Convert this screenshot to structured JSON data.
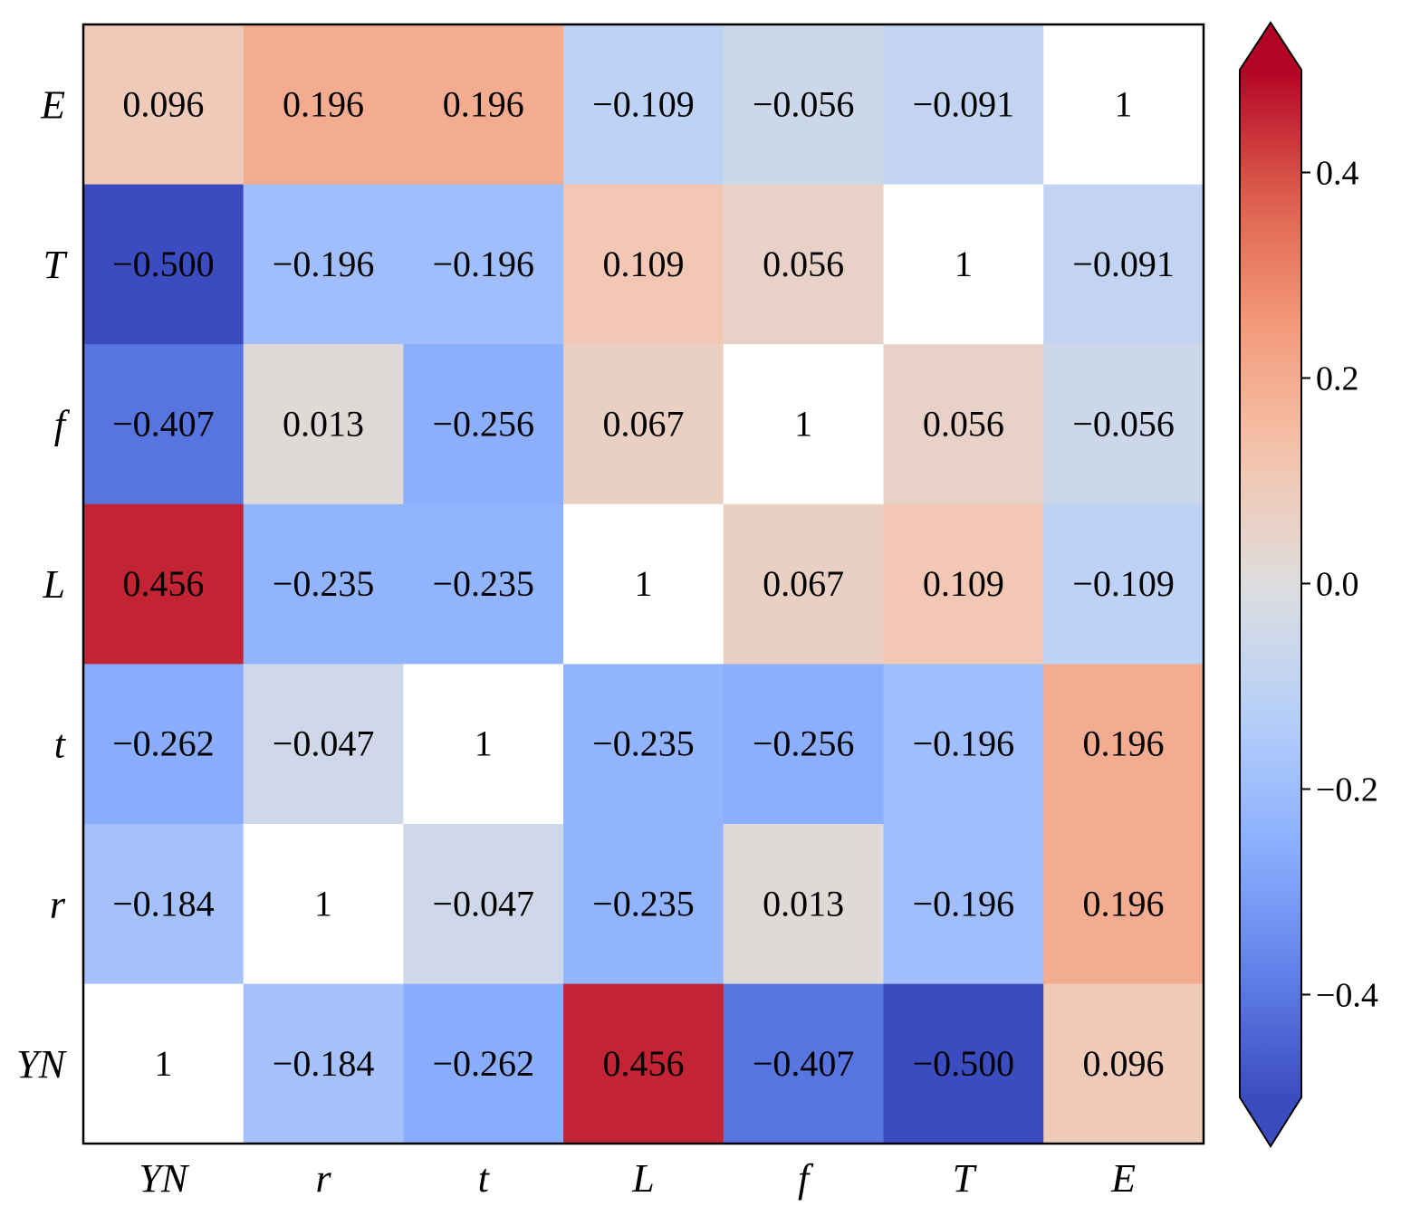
{
  "chart_data": {
    "type": "heatmap",
    "title": "",
    "xlabel": "",
    "ylabel": "",
    "x_labels": [
      "YN",
      "r",
      "t",
      "L",
      "f",
      "T",
      "E"
    ],
    "y_labels_top_to_bottom": [
      "E",
      "T",
      "f",
      "L",
      "t",
      "r",
      "YN"
    ],
    "values_top_to_bottom": [
      [
        0.096,
        0.196,
        0.196,
        -0.109,
        -0.056,
        -0.091,
        1
      ],
      [
        -0.5,
        -0.196,
        -0.196,
        0.109,
        0.056,
        1,
        -0.091
      ],
      [
        -0.407,
        0.013,
        -0.256,
        0.067,
        1,
        0.056,
        -0.056
      ],
      [
        0.456,
        -0.235,
        -0.235,
        1,
        0.067,
        0.109,
        -0.109
      ],
      [
        -0.262,
        -0.047,
        1,
        -0.235,
        -0.256,
        -0.196,
        0.196
      ],
      [
        -0.184,
        1,
        -0.047,
        -0.235,
        0.013,
        -0.196,
        0.196
      ],
      [
        1,
        -0.184,
        -0.262,
        0.456,
        -0.407,
        -0.5,
        0.096
      ]
    ],
    "display_labels_top_to_bottom": [
      [
        "0.096",
        "0.196",
        "0.196",
        "−0.109",
        "−0.056",
        "−0.091",
        "1"
      ],
      [
        "−0.500",
        "−0.196",
        "−0.196",
        "0.109",
        "0.056",
        "1",
        "−0.091"
      ],
      [
        "−0.407",
        "0.013",
        "−0.256",
        "0.067",
        "1",
        "0.056",
        "−0.056"
      ],
      [
        "0.456",
        "−0.235",
        "−0.235",
        "1",
        "0.067",
        "0.109",
        "−0.109"
      ],
      [
        "−0.262",
        "−0.047",
        "1",
        "−0.235",
        "−0.256",
        "−0.196",
        "0.196"
      ],
      [
        "−0.184",
        "1",
        "−0.047",
        "−0.235",
        "0.013",
        "−0.196",
        "0.196"
      ],
      [
        "1",
        "−0.184",
        "−0.262",
        "0.456",
        "−0.407",
        "−0.500",
        "0.096"
      ]
    ],
    "diagonal_color": "#ffffff",
    "colormap": "coolwarm",
    "vmin": -0.5,
    "vmax": 0.5,
    "colorbar": {
      "ticks": [
        0.4,
        0.2,
        0.0,
        -0.2,
        -0.4
      ],
      "tick_labels": [
        "0.4",
        "0.2",
        "0.0",
        "−0.2",
        "−0.4"
      ],
      "extend": "both"
    }
  },
  "colors": {
    "blue": "#3b4cc0",
    "neutral": "#dddddd",
    "red": "#b40426",
    "text": "#000000"
  }
}
